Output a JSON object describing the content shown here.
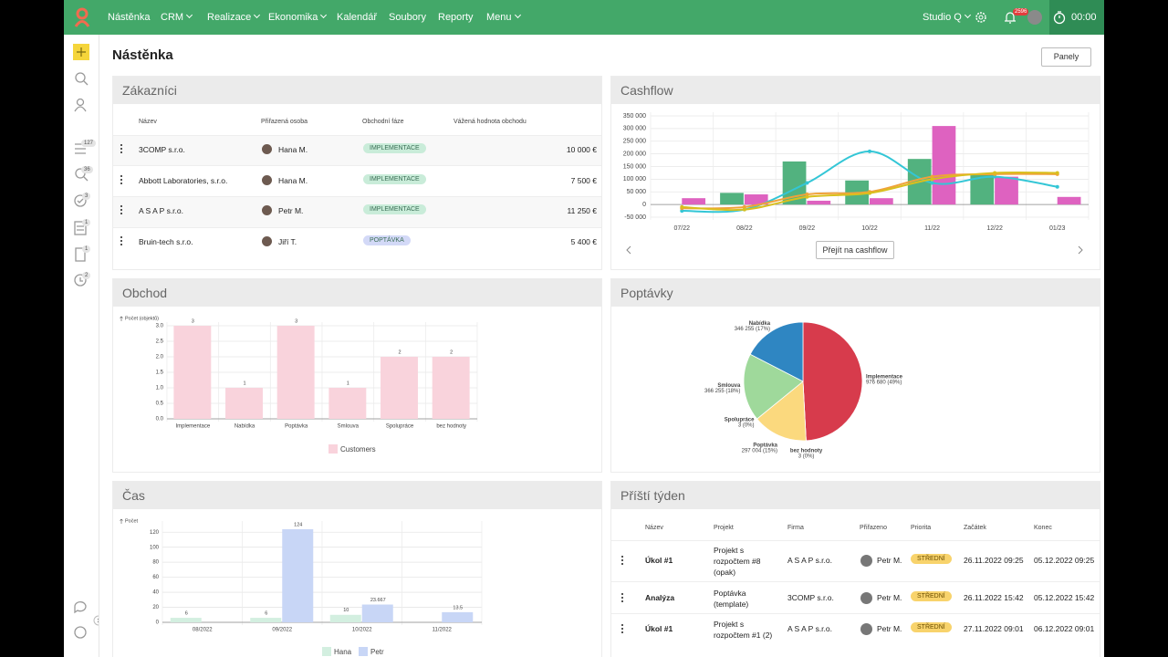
{
  "nav": {
    "items": [
      "Nástěnka",
      "CRM",
      "Realizace",
      "Ekonomika",
      "Kalendář",
      "Soubory",
      "Reporty",
      "Menu"
    ],
    "dropdowns": [
      false,
      true,
      true,
      true,
      false,
      false,
      false,
      true
    ],
    "company": "Studio Q",
    "notifications": "2596",
    "timer": "00:00"
  },
  "sidebar": {
    "badges": [
      "127",
      "36",
      "3",
      "1",
      "1",
      "2"
    ]
  },
  "page": {
    "title": "Nástěnka",
    "panels_button": "Panely"
  },
  "customers": {
    "title": "Zákazníci",
    "columns": [
      "Název",
      "Přiřazená osoba",
      "Obchodní fáze",
      "Vážená hodnota obchodu"
    ],
    "rows": [
      {
        "name": "3COMP s.r.o.",
        "person": "Hana M.",
        "phase": "IMPLEMENTACE",
        "phase_color": "#c9ecd9",
        "value": "10 000 €"
      },
      {
        "name": "Abbott Laboratories, s.r.o.",
        "person": "Hana M.",
        "phase": "IMPLEMENTACE",
        "phase_color": "#c9ecd9",
        "value": "7 500 €"
      },
      {
        "name": "A S A P s.r.o.",
        "person": "Petr M.",
        "phase": "IMPLEMENTACE",
        "phase_color": "#c9ecd9",
        "value": "11 250 €"
      },
      {
        "name": "Bruin-tech s.r.o.",
        "person": "Jiří T.",
        "phase": "POPTÁVKA",
        "phase_color": "#d3d9f7",
        "value": "5 400 €"
      }
    ]
  },
  "cashflow_button": "Přejít na cashflow",
  "next_week": {
    "title": "Příští týden",
    "columns": [
      "Název",
      "Projekt",
      "Firma",
      "Přiřazeno",
      "Priorita",
      "Začátek",
      "Konec"
    ],
    "rows": [
      {
        "name": "Úkol #1",
        "project": "Projekt s rozpočtem #8 (opak)",
        "company": "A S A P s.r.o.",
        "assignee": "Petr M.",
        "priority": "STŘEDNÍ",
        "start": "26.11.2022 09:25",
        "end": "05.12.2022 09:25"
      },
      {
        "name": "Analýza",
        "project": "Poptávka (template)",
        "company": "3COMP s.r.o.",
        "assignee": "Petr M.",
        "priority": "STŘEDNÍ",
        "start": "26.11.2022 15:42",
        "end": "05.12.2022 15:42"
      },
      {
        "name": "Úkol #1",
        "project": "Projekt s rozpočtem #1 (2)",
        "company": "A S A P s.r.o.",
        "assignee": "Petr M.",
        "priority": "STŘEDNÍ",
        "start": "27.11.2022 09:01",
        "end": "06.12.2022 09:01"
      }
    ]
  },
  "chart_data": [
    {
      "type": "combo",
      "title": "Cashflow",
      "categories": [
        "07/22",
        "08/22",
        "09/22",
        "10/22",
        "11/22",
        "12/22",
        "01/23"
      ],
      "series": [
        {
          "type": "bar",
          "color": "#52b27f",
          "values": [
            0,
            46000,
            170000,
            95000,
            180000,
            120000,
            0
          ]
        },
        {
          "type": "bar",
          "color": "#de62c0",
          "values": [
            25000,
            40000,
            15000,
            25000,
            310000,
            110000,
            30000
          ]
        },
        {
          "type": "line",
          "color": "#33c6d6",
          "values": [
            -25000,
            -20000,
            85000,
            210000,
            85000,
            110000,
            70000
          ]
        },
        {
          "type": "line",
          "color": "#f0a23a",
          "values": [
            -15000,
            -10000,
            40000,
            50000,
            110000,
            120000,
            120000
          ]
        },
        {
          "type": "line",
          "color": "#d9bf1e",
          "values": [
            -10000,
            -20000,
            30000,
            45000,
            100000,
            125000,
            125000
          ]
        }
      ],
      "ylim": [
        -50000,
        350000
      ],
      "yticks": [
        {
          "value": -50000,
          "label": "-50 000"
        },
        0,
        {
          "value": 50000,
          "label": "50 000"
        },
        {
          "value": 100000,
          "label": "100 000"
        },
        {
          "value": 150000,
          "label": "150 000"
        },
        {
          "value": 200000,
          "label": "200 000"
        },
        {
          "value": 250000,
          "label": "250 000"
        },
        {
          "value": 300000,
          "label": "300 000"
        },
        {
          "value": 350000,
          "label": "350 000"
        }
      ],
      "grid": true
    },
    {
      "type": "bar",
      "title": "Obchod",
      "y_label": "Počet (objektů)",
      "categories": [
        "Implementace",
        "Nabídka",
        "Poptávka",
        "Smlouva",
        "Spolupráce",
        "bez hodnoty"
      ],
      "series": [
        {
          "name": "Customers",
          "color": "#f9d3dc",
          "values": [
            3,
            1,
            3,
            1,
            2,
            2
          ]
        }
      ],
      "ylim": [
        0,
        3
      ],
      "yticks": [
        {
          "value": 0,
          "label": "0.0"
        },
        {
          "value": 0.5,
          "label": "0.5"
        },
        {
          "value": 1,
          "label": "1.0"
        },
        {
          "value": 1.5,
          "label": "1.5"
        },
        {
          "value": 2,
          "label": "2.0"
        },
        {
          "value": 2.5,
          "label": "2.5"
        },
        {
          "value": 3,
          "label": "3.0"
        }
      ],
      "grid": true,
      "data_labels": true
    },
    {
      "type": "pie",
      "title": "Poptávky",
      "categories": [
        "Implementace",
        "bez hodnoty",
        "Poptávka",
        "Spolupráce",
        "Smlouva",
        "Nabídka"
      ],
      "values": [
        976680,
        3,
        297004,
        3,
        366255,
        346255
      ],
      "value_labels": [
        "976 680 (49%)",
        "3 (0%)",
        "297 004 (15%)",
        "3 (0%)",
        "366 255 (18%)",
        "346 255 (17%)"
      ],
      "colors": [
        "#d73b4c",
        "#e8b0b8",
        "#fbd97e",
        "#c6e3a0",
        "#9fd99b",
        "#2f86c2"
      ]
    },
    {
      "type": "bar",
      "title": "Čas",
      "y_label": "Počet",
      "categories": [
        "08/2022",
        "09/2022",
        "10/2022",
        "11/2022"
      ],
      "series": [
        {
          "name": "Hana",
          "color": "#d3efe0",
          "values": [
            6,
            6,
            10,
            null
          ]
        },
        {
          "name": "Petr",
          "color": "#c8d6f6",
          "values": [
            null,
            124,
            23.667,
            13.5
          ]
        }
      ],
      "ylim": [
        0,
        130
      ],
      "yticks": [
        0,
        20,
        40,
        60,
        80,
        100,
        120
      ],
      "grid": true,
      "data_labels": true
    }
  ]
}
